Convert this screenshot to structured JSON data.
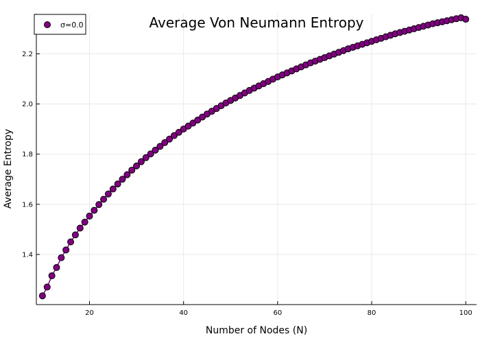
{
  "chart_data": {
    "type": "line",
    "title": "Average Von Neumann Entropy",
    "xlabel": "Number of Nodes (N)",
    "ylabel": "Average Entropy",
    "xlim": [
      8.7,
      102.3
    ],
    "ylim": [
      1.2,
      2.36
    ],
    "xticks": [
      20,
      40,
      60,
      80,
      100
    ],
    "yticks": [
      1.4,
      1.6,
      1.8,
      2.0,
      2.2
    ],
    "xtick_labels": [
      "20",
      "40",
      "60",
      "80",
      "100"
    ],
    "ytick_labels": [
      "1.4",
      "1.6",
      "1.8",
      "2.0",
      "2.2"
    ],
    "grid": true,
    "legend_position": "top-left",
    "series": [
      {
        "name": "σ=0.0",
        "color": "#800080",
        "marker": "circle",
        "x": [
          10,
          11,
          12,
          13,
          14,
          15,
          16,
          17,
          18,
          19,
          20,
          21,
          22,
          23,
          24,
          25,
          26,
          27,
          28,
          29,
          30,
          31,
          32,
          33,
          34,
          35,
          36,
          37,
          38,
          39,
          40,
          41,
          42,
          43,
          44,
          45,
          46,
          47,
          48,
          49,
          50,
          51,
          52,
          53,
          54,
          55,
          56,
          57,
          58,
          59,
          60,
          61,
          62,
          63,
          64,
          65,
          66,
          67,
          68,
          69,
          70,
          71,
          72,
          73,
          74,
          75,
          76,
          77,
          78,
          79,
          80,
          81,
          82,
          83,
          84,
          85,
          86,
          87,
          88,
          89,
          90,
          91,
          92,
          93,
          94,
          95,
          96,
          97,
          98,
          99,
          100
        ],
        "values": [
          1.235,
          1.27,
          1.315,
          1.348,
          1.387,
          1.418,
          1.45,
          1.478,
          1.505,
          1.529,
          1.553,
          1.576,
          1.599,
          1.62,
          1.641,
          1.661,
          1.681,
          1.7,
          1.718,
          1.736,
          1.753,
          1.77,
          1.786,
          1.801,
          1.816,
          1.831,
          1.846,
          1.86,
          1.874,
          1.887,
          1.9,
          1.912,
          1.924,
          1.936,
          1.948,
          1.96,
          1.971,
          1.982,
          1.993,
          2.004,
          2.014,
          2.024,
          2.034,
          2.044,
          2.054,
          2.063,
          2.072,
          2.081,
          2.09,
          2.099,
          2.108,
          2.116,
          2.124,
          2.132,
          2.14,
          2.148,
          2.156,
          2.164,
          2.171,
          2.178,
          2.185,
          2.192,
          2.199,
          2.206,
          2.213,
          2.22,
          2.226,
          2.232,
          2.238,
          2.244,
          2.25,
          2.256,
          2.262,
          2.268,
          2.274,
          2.28,
          2.285,
          2.29,
          2.295,
          2.3,
          2.305,
          2.31,
          2.315,
          2.32,
          2.324,
          2.328,
          2.332,
          2.336,
          2.34,
          2.344,
          2.338
        ]
      }
    ]
  }
}
